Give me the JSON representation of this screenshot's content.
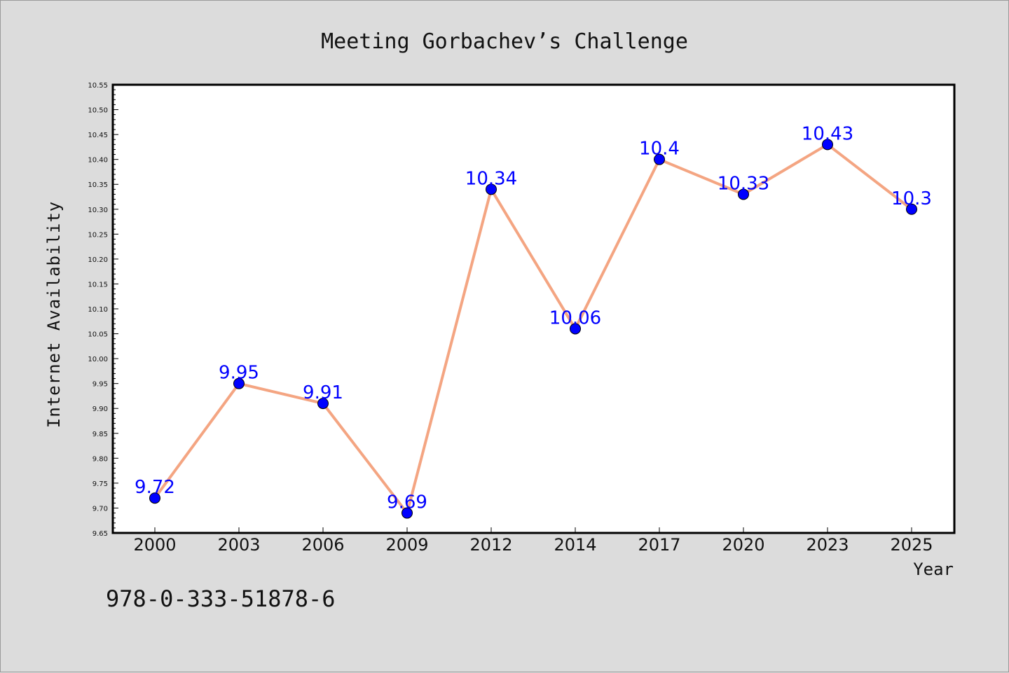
{
  "chart_data": {
    "type": "line",
    "title": "Meeting Gorbachev’s Challenge",
    "xlabel": "Year",
    "ylabel": "Internet Availability",
    "categories": [
      "2000",
      "2003",
      "2006",
      "2009",
      "2012",
      "2014",
      "2017",
      "2020",
      "2023",
      "2025"
    ],
    "series": [
      {
        "values": [
          9.72,
          9.95,
          9.91,
          9.69,
          10.34,
          10.06,
          10.4,
          10.33,
          10.43,
          10.3
        ]
      }
    ],
    "data_labels": [
      "9.72",
      "9.95",
      "9.91",
      "9.69",
      "10.34",
      "10.06",
      "10.4",
      "10.33",
      "10.43",
      "10.3"
    ],
    "ylim": [
      9.65,
      10.55
    ],
    "ytick_step": 0.05,
    "ytick_labels": [
      "9.65",
      "9.70",
      "9.75",
      "9.80",
      "9.85",
      "9.90",
      "9.95",
      "10.00",
      "10.05",
      "10.10",
      "10.15",
      "10.20",
      "10.25",
      "10.30",
      "10.35",
      "10.40",
      "10.45",
      "10.50",
      "10.55"
    ],
    "grid": false,
    "legend": "none",
    "line_color": "#f4a582",
    "marker_color": "#0000ff",
    "label_color": "#0000ff"
  },
  "footer": {
    "isbn": "978-0-333-51878-6"
  }
}
